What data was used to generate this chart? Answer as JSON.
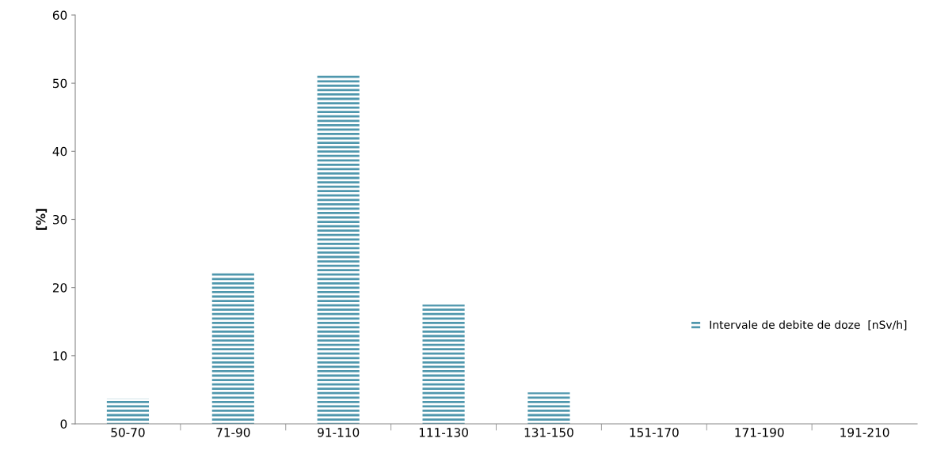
{
  "chart_data": {
    "type": "bar",
    "ylabel": "[%]",
    "categories": [
      "50-70",
      "71-90",
      "91-110",
      "111-130",
      "131-150",
      "151-170",
      "171-190",
      "191-210"
    ],
    "series": [
      {
        "name": "Intervale de debite de doze  [nSv/h]",
        "color": "#4f97ad",
        "values": [
          3.7,
          22.4,
          51.4,
          17.5,
          4.6,
          0,
          0,
          0
        ]
      }
    ],
    "ylim": [
      0,
      60
    ],
    "yticks": [
      0,
      10,
      20,
      30,
      40,
      50,
      60
    ],
    "grid": false,
    "legend": "right"
  }
}
